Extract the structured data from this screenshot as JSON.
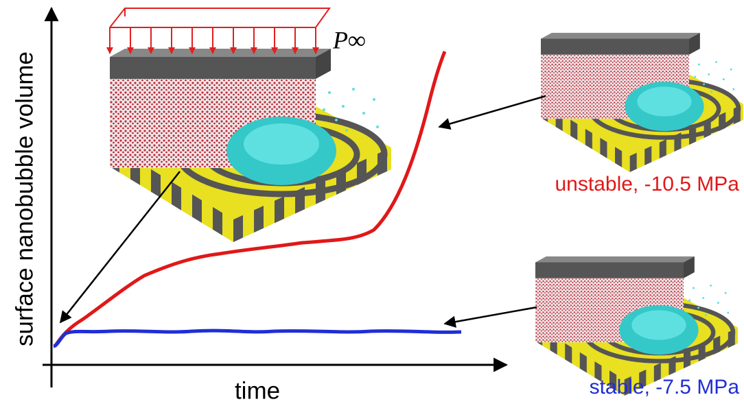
{
  "axes": {
    "y_label": "surface nanobubble volume",
    "x_label": "time"
  },
  "annotations": {
    "pressure": "P∞"
  },
  "curves": [
    {
      "label": "unstable, -10.5 MPa"
    },
    {
      "label": "stable, -7.5 MPa"
    }
  ]
}
